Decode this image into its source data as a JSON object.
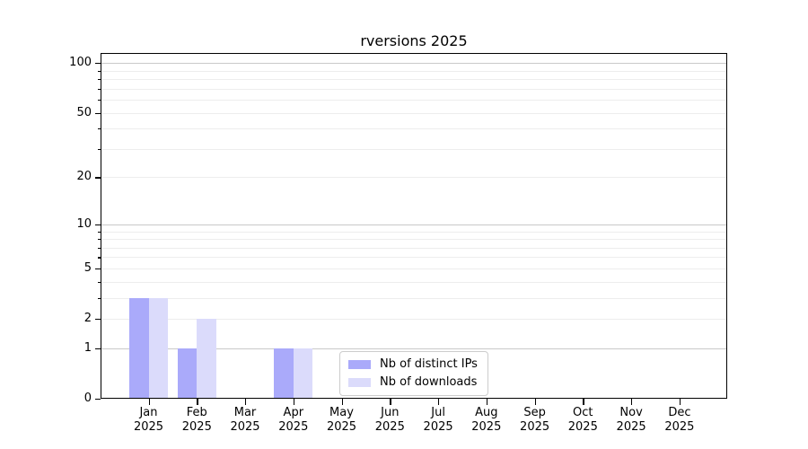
{
  "chart_data": {
    "type": "bar",
    "title": "rversions 2025",
    "categories": [
      "Jan 2025",
      "Feb 2025",
      "Mar 2025",
      "Apr 2025",
      "May 2025",
      "Jun 2025",
      "Jul 2025",
      "Aug 2025",
      "Sep 2025",
      "Oct 2025",
      "Nov 2025",
      "Dec 2025"
    ],
    "series": [
      {
        "name": "Nb of distinct IPs",
        "color": "#aaaafa",
        "values": [
          3,
          1,
          0,
          1,
          0,
          0,
          0,
          0,
          0,
          0,
          0,
          0
        ]
      },
      {
        "name": "Nb of downloads",
        "color": "#dbdbfb",
        "values": [
          3,
          2,
          0,
          1,
          0,
          0,
          0,
          0,
          0,
          0,
          0,
          0
        ]
      }
    ],
    "xlabel": "",
    "ylabel": "",
    "y_scale": "log10(1+y)",
    "ylim": [
      0,
      115
    ],
    "y_tick_labels": [
      0,
      1,
      2,
      5,
      10,
      20,
      50,
      100
    ],
    "y_gridlines_major": [
      1,
      10,
      100
    ],
    "y_gridlines_minor": [
      2,
      3,
      4,
      5,
      6,
      7,
      8,
      9,
      20,
      30,
      40,
      50,
      60,
      70,
      80,
      90
    ],
    "y_minor_tick_marks": [
      3,
      4,
      6,
      7,
      8,
      9,
      30,
      40,
      60,
      70,
      80,
      90
    ],
    "grid": "horizontal",
    "legend_position": "inside lower-center",
    "colors": {
      "major_grid": "#c9c9c9",
      "minor_grid": "#ededed",
      "spine": "#000000",
      "background": "#ffffff"
    }
  }
}
